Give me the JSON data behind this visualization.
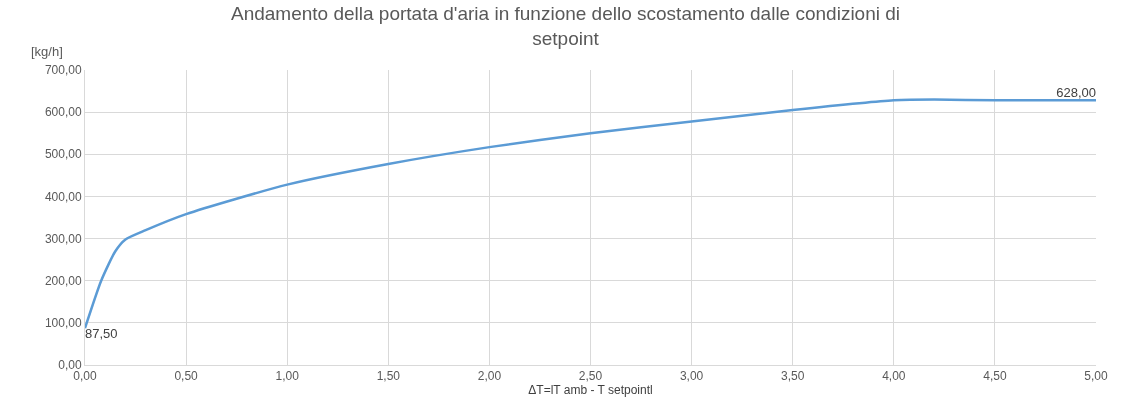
{
  "chart_data": {
    "type": "line",
    "title": "Andamento della portata d'aria in funzione dello scostamento dalle condizioni di setpoint",
    "xlabel": "ΔT=lT amb - T setpointl",
    "ylabel": "[kg/h]",
    "x": [
      0,
      0.08,
      0.15,
      0.2,
      0.3,
      0.5,
      1,
      1.5,
      2,
      2.5,
      3,
      3.5,
      4,
      4.2,
      4.5,
      5
    ],
    "series": [
      {
        "color": "#5b9bd5",
        "values": [
          87.5,
          200,
          270,
          298,
          320,
          358,
          428,
          477,
          517,
          550,
          578,
          605,
          628,
          630,
          628,
          628
        ],
        "value_labels": [
          "87,50",
          null,
          null,
          null,
          null,
          null,
          null,
          null,
          null,
          null,
          null,
          null,
          null,
          null,
          null,
          "628,00"
        ]
      }
    ],
    "xlim": [
      0,
      5
    ],
    "ylim": [
      0,
      700
    ],
    "xticks": [
      {
        "value": 0,
        "label": "0,00"
      },
      {
        "value": 0.5,
        "label": "0,50"
      },
      {
        "value": 1,
        "label": "1,00"
      },
      {
        "value": 1.5,
        "label": "1,50"
      },
      {
        "value": 2,
        "label": "2,00"
      },
      {
        "value": 2.5,
        "label": "2,50"
      },
      {
        "value": 3,
        "label": "3,00"
      },
      {
        "value": 3.5,
        "label": "3,50"
      },
      {
        "value": 4,
        "label": "4,00"
      },
      {
        "value": 4.5,
        "label": "4,50"
      },
      {
        "value": 5,
        "label": "5,00"
      }
    ],
    "yticks": [
      {
        "value": 0,
        "label": "0,00"
      },
      {
        "value": 100,
        "label": "100,00"
      },
      {
        "value": 200,
        "label": "200,00"
      },
      {
        "value": 300,
        "label": "300,00"
      },
      {
        "value": 400,
        "label": "400,00"
      },
      {
        "value": 500,
        "label": "500,00"
      },
      {
        "value": 600,
        "label": "600,00"
      },
      {
        "value": 700,
        "label": "700,00"
      }
    ],
    "grid": true,
    "marker": "none",
    "line_style": "solid"
  }
}
